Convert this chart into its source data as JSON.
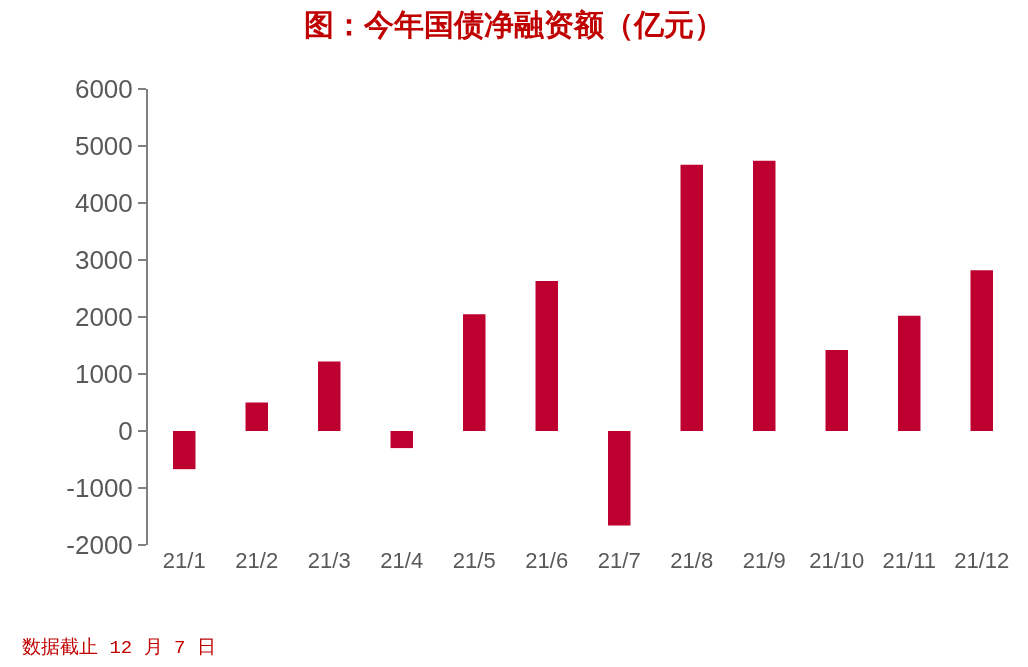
{
  "chart_data": {
    "type": "bar",
    "title": "图：今年国债净融资额（亿元）",
    "categories": [
      "21/1",
      "21/2",
      "21/3",
      "21/4",
      "21/5",
      "21/6",
      "21/7",
      "21/8",
      "21/9",
      "21/10",
      "21/11",
      "21/12"
    ],
    "values": [
      -670,
      500,
      1220,
      -300,
      2050,
      2630,
      -1660,
      4670,
      4740,
      1420,
      2020,
      2820
    ],
    "color": "#be0030",
    "ylim": [
      -2000,
      6000
    ],
    "yticks": [
      -2000,
      -1000,
      0,
      1000,
      2000,
      3000,
      4000,
      5000,
      6000
    ],
    "annotations": [
      "数据截止 12 月 7 日"
    ]
  }
}
